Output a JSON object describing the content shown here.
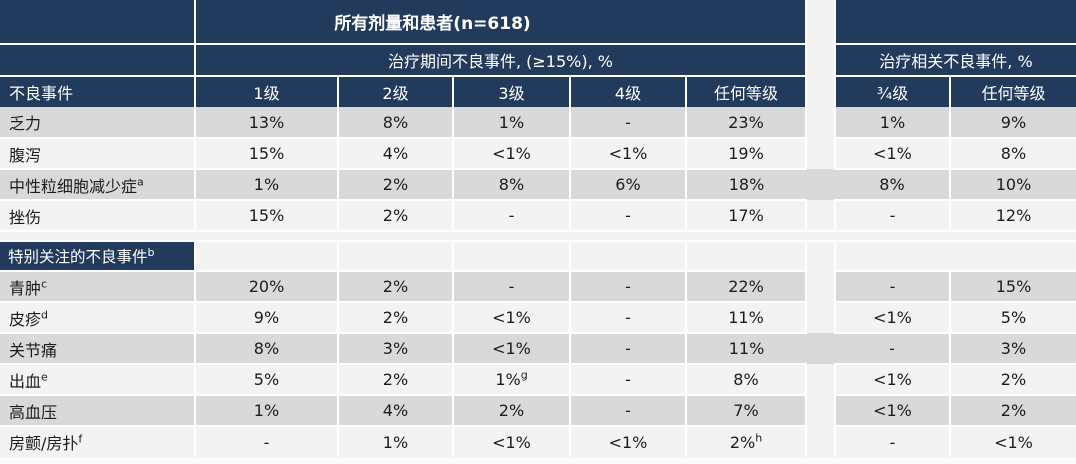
{
  "table": {
    "title": "所有剂量和患者(n=618)",
    "group_headers": {
      "during_treatment": "治疗期间不良事件, (≥15%), %",
      "treatment_related": "治疗相关不良事件, %"
    },
    "columns": {
      "adverse_event": "不良事件",
      "grade1": "1级",
      "grade2": "2级",
      "grade3": "3级",
      "grade4": "4级",
      "any_grade": "任何等级",
      "grade3_4": "¾级",
      "any_grade_related": "任何等级"
    },
    "rows": [
      {
        "type": "data",
        "shade": "gray",
        "gap_gray": false,
        "label": {
          "t": "乏力",
          "s": ""
        },
        "cells": [
          {
            "t": "13%",
            "s": ""
          },
          {
            "t": "8%",
            "s": ""
          },
          {
            "t": "1%",
            "s": ""
          },
          {
            "t": "-",
            "s": ""
          },
          {
            "t": "23%",
            "s": ""
          },
          {
            "t": "1%",
            "s": ""
          },
          {
            "t": "9%",
            "s": ""
          }
        ]
      },
      {
        "type": "data",
        "shade": "light",
        "gap_gray": false,
        "label": {
          "t": "腹泻",
          "s": ""
        },
        "cells": [
          {
            "t": "15%",
            "s": ""
          },
          {
            "t": "4%",
            "s": ""
          },
          {
            "t": "<1%",
            "s": ""
          },
          {
            "t": "<1%",
            "s": ""
          },
          {
            "t": "19%",
            "s": ""
          },
          {
            "t": "<1%",
            "s": ""
          },
          {
            "t": "8%",
            "s": ""
          }
        ]
      },
      {
        "type": "data",
        "shade": "gray",
        "gap_gray": true,
        "label": {
          "t": "中性粒细胞减少症",
          "s": "a"
        },
        "cells": [
          {
            "t": "1%",
            "s": ""
          },
          {
            "t": "2%",
            "s": ""
          },
          {
            "t": "8%",
            "s": ""
          },
          {
            "t": "6%",
            "s": ""
          },
          {
            "t": "18%",
            "s": ""
          },
          {
            "t": "8%",
            "s": ""
          },
          {
            "t": "10%",
            "s": ""
          }
        ]
      },
      {
        "type": "data",
        "shade": "light",
        "gap_gray": false,
        "label": {
          "t": "挫伤",
          "s": ""
        },
        "cells": [
          {
            "t": "15%",
            "s": ""
          },
          {
            "t": "2%",
            "s": ""
          },
          {
            "t": "-",
            "s": ""
          },
          {
            "t": "-",
            "s": ""
          },
          {
            "t": "17%",
            "s": ""
          },
          {
            "t": "-",
            "s": ""
          },
          {
            "t": "12%",
            "s": ""
          }
        ]
      },
      {
        "type": "spacer"
      },
      {
        "type": "section",
        "label": {
          "t": "特别关注的不良事件",
          "s": "b"
        }
      },
      {
        "type": "data",
        "shade": "gray",
        "gap_gray": false,
        "label": {
          "t": "青肿",
          "s": "c"
        },
        "cells": [
          {
            "t": "20%",
            "s": ""
          },
          {
            "t": "2%",
            "s": ""
          },
          {
            "t": "-",
            "s": ""
          },
          {
            "t": "-",
            "s": ""
          },
          {
            "t": "22%",
            "s": ""
          },
          {
            "t": "-",
            "s": ""
          },
          {
            "t": "15%",
            "s": ""
          }
        ]
      },
      {
        "type": "data",
        "shade": "light",
        "gap_gray": false,
        "label": {
          "t": "皮疹",
          "s": "d"
        },
        "cells": [
          {
            "t": "9%",
            "s": ""
          },
          {
            "t": "2%",
            "s": ""
          },
          {
            "t": "<1%",
            "s": ""
          },
          {
            "t": "-",
            "s": ""
          },
          {
            "t": "11%",
            "s": ""
          },
          {
            "t": "<1%",
            "s": ""
          },
          {
            "t": "5%",
            "s": ""
          }
        ]
      },
      {
        "type": "data",
        "shade": "gray",
        "gap_gray": true,
        "label": {
          "t": "关节痛",
          "s": ""
        },
        "cells": [
          {
            "t": "8%",
            "s": ""
          },
          {
            "t": "3%",
            "s": ""
          },
          {
            "t": "<1%",
            "s": ""
          },
          {
            "t": "-",
            "s": ""
          },
          {
            "t": "11%",
            "s": ""
          },
          {
            "t": "-",
            "s": ""
          },
          {
            "t": "3%",
            "s": ""
          }
        ]
      },
      {
        "type": "data",
        "shade": "light",
        "gap_gray": false,
        "label": {
          "t": "出血",
          "s": "e"
        },
        "cells": [
          {
            "t": "5%",
            "s": ""
          },
          {
            "t": "2%",
            "s": ""
          },
          {
            "t": "1%",
            "s": "g"
          },
          {
            "t": "-",
            "s": ""
          },
          {
            "t": "8%",
            "s": ""
          },
          {
            "t": "<1%",
            "s": ""
          },
          {
            "t": "2%",
            "s": ""
          }
        ]
      },
      {
        "type": "data",
        "shade": "gray",
        "gap_gray": false,
        "label": {
          "t": "高血压",
          "s": ""
        },
        "cells": [
          {
            "t": "1%",
            "s": ""
          },
          {
            "t": "4%",
            "s": ""
          },
          {
            "t": "2%",
            "s": ""
          },
          {
            "t": "-",
            "s": ""
          },
          {
            "t": "7%",
            "s": ""
          },
          {
            "t": "<1%",
            "s": ""
          },
          {
            "t": "2%",
            "s": ""
          }
        ]
      },
      {
        "type": "data",
        "shade": "light",
        "gap_gray": false,
        "label": {
          "t": "房颤/房扑",
          "s": "f"
        },
        "cells": [
          {
            "t": "-",
            "s": ""
          },
          {
            "t": "1%",
            "s": ""
          },
          {
            "t": "<1%",
            "s": ""
          },
          {
            "t": "<1%",
            "s": ""
          },
          {
            "t": "2%",
            "s": "h"
          },
          {
            "t": "-",
            "s": ""
          },
          {
            "t": "<1%",
            "s": ""
          }
        ]
      }
    ]
  },
  "colors": {
    "header_navy": "#223A5C",
    "band_gray": "#D9D9D9",
    "band_light": "#F3F3F3",
    "header_text": "#FFFFFF",
    "body_text": "#1C1C1C"
  }
}
